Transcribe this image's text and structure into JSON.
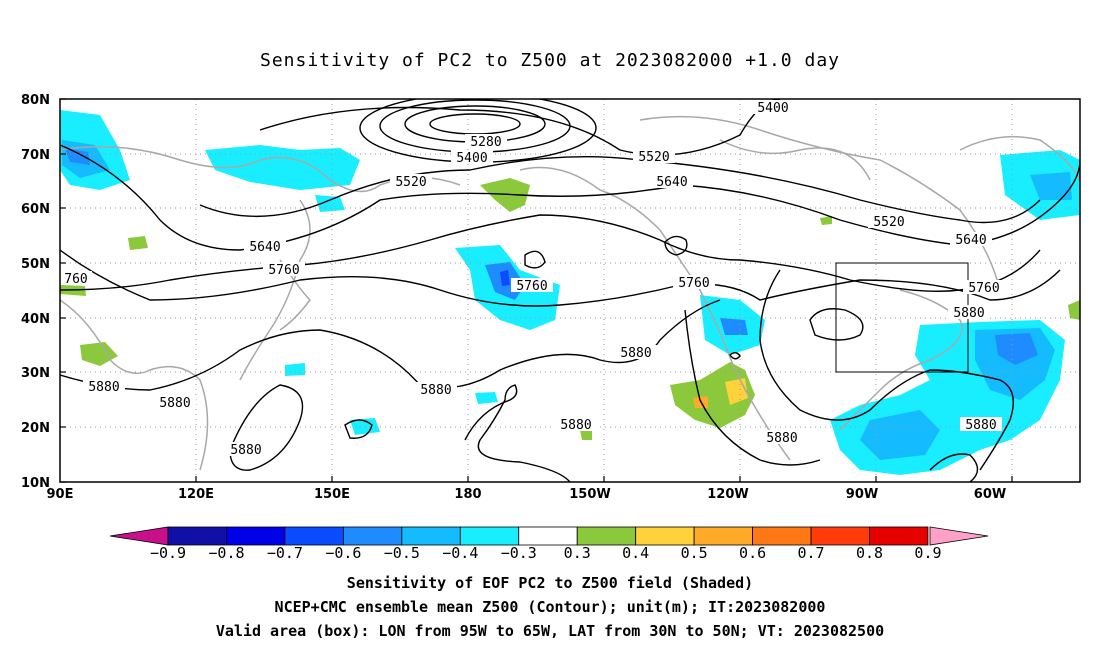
{
  "title": "Sensitivity of PC2 to Z500 at 2023082000 +1.0 day",
  "lat_labels": [
    "80N",
    "70N",
    "60N",
    "50N",
    "40N",
    "30N",
    "20N",
    "10N"
  ],
  "lon_labels": [
    "90E",
    "120E",
    "150E",
    "180",
    "150W",
    "120W",
    "90W",
    "60W"
  ],
  "contour_labels": {
    "c5280": "5280",
    "c5400a": "5400",
    "c5400b": "5400",
    "c5520a": "5520",
    "c5520b": "5520",
    "c5520c": "5520",
    "c5640a": "5640",
    "c5640b": "5640",
    "c5640c": "5640",
    "c5760a": "5760",
    "c5760b": "5760",
    "c5760c": "5760",
    "c5760d": "5760",
    "c5760e": "760",
    "c5880a": "5880",
    "c5880b": "5880",
    "c5880c": "5880",
    "c5880d": "5880",
    "c5880e": "5880",
    "c5880f": "5880",
    "c5880g": "5880",
    "c5880h": "5880",
    "c5880i": "5880"
  },
  "colorbar": {
    "labels": [
      "-0.9",
      "-0.8",
      "-0.7",
      "-0.6",
      "-0.5",
      "-0.4",
      "-0.3",
      "0.3",
      "0.4",
      "0.5",
      "0.6",
      "0.7",
      "0.8",
      "0.9"
    ],
    "colors": [
      "#1010a8",
      "#0000e8",
      "#0a4cff",
      "#1e8cff",
      "#14bcff",
      "#18eeff",
      "#ffffff",
      "#8cc83c",
      "#ffd23c",
      "#ffaa28",
      "#ff7814",
      "#ff3c0a",
      "#e60000"
    ],
    "end_low_color": "#c8108c",
    "end_high_color": "#ffa0c8"
  },
  "footer": {
    "line1": "Sensitivity of EOF PC2 to Z500 field (Shaded)",
    "line2": "NCEP+CMC ensemble mean Z500 (Contour); unit(m); IT:2023082000",
    "line3": "Valid area (box): LON from 95W to 65W, LAT from 30N to 50N; VT: 2023082500"
  }
}
